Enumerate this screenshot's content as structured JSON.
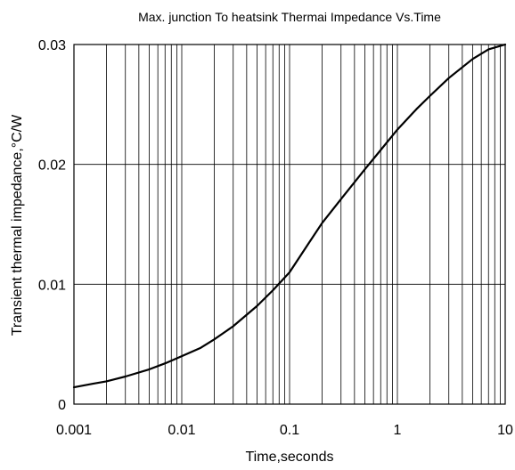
{
  "chart_data": {
    "type": "line",
    "title": "Max. junction To heatsink Thermai Impedance Vs.Time",
    "xlabel": "Time,seconds",
    "ylabel": "Transient thermal impedance,°C/W",
    "x_scale": "log",
    "xlim": [
      0.001,
      10
    ],
    "ylim": [
      0,
      0.03
    ],
    "grid": true,
    "x_tick_labels": [
      "0.001",
      "0.01",
      "0.1",
      "1",
      "10"
    ],
    "y_tick_labels": [
      "0",
      "0.01",
      "0.02",
      "0.03"
    ],
    "x_ticks": [
      0.001,
      0.01,
      0.1,
      1,
      10
    ],
    "y_ticks": [
      0,
      0.01,
      0.02,
      0.03
    ],
    "series": [
      {
        "x": [
          0.001,
          0.0015,
          0.002,
          0.003,
          0.005,
          0.007,
          0.01,
          0.015,
          0.02,
          0.03,
          0.05,
          0.07,
          0.1,
          0.15,
          0.2,
          0.3,
          0.5,
          0.7,
          1,
          1.5,
          2,
          3,
          5,
          7,
          10
        ],
        "y": [
          0.0014,
          0.0017,
          0.0019,
          0.0023,
          0.0029,
          0.0034,
          0.004,
          0.0047,
          0.0054,
          0.0065,
          0.0082,
          0.0095,
          0.011,
          0.0134,
          0.0151,
          0.0171,
          0.0196,
          0.0212,
          0.0229,
          0.0246,
          0.0257,
          0.0272,
          0.0288,
          0.0296,
          0.03
        ]
      }
    ]
  }
}
